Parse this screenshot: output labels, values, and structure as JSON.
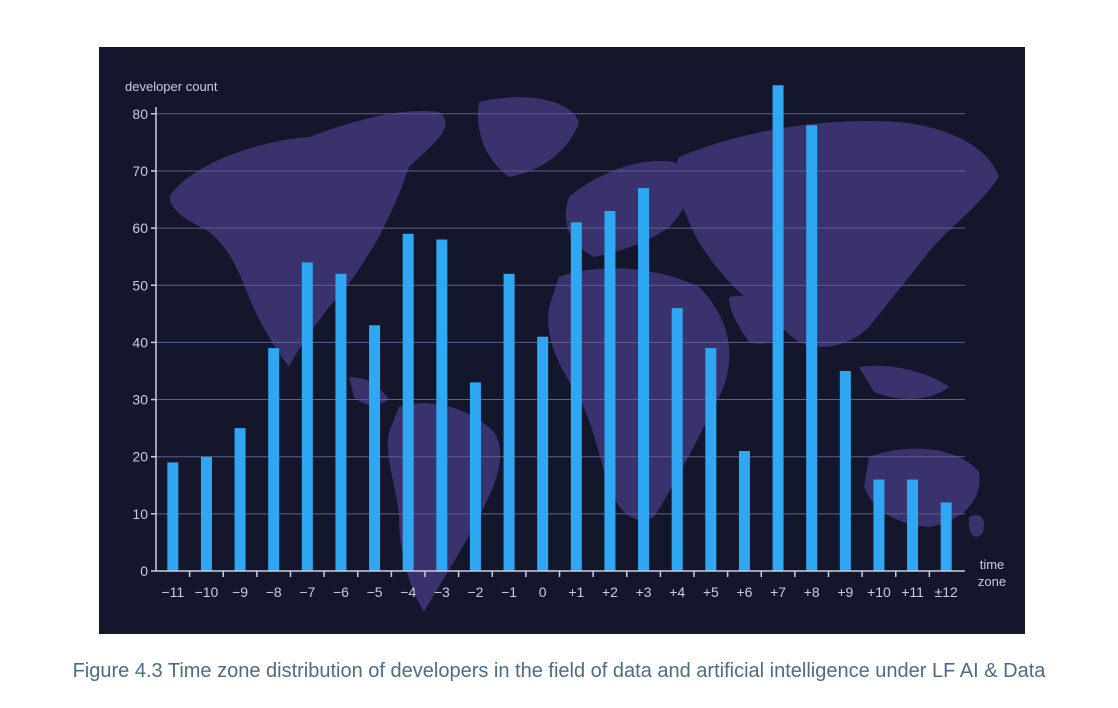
{
  "colors": {
    "background": "#14162b",
    "map": "#3b3470",
    "bar": "#2fa7f2",
    "gridline": "#5a5f8c",
    "axis": "#c9cde0",
    "caption": "#4e6b86"
  },
  "chart_data": {
    "type": "bar",
    "title": "",
    "ylabel": "developer count",
    "xlabel": [
      "time",
      "zone"
    ],
    "categories": [
      "−11",
      "−10",
      "−9",
      "−8",
      "−7",
      "−6",
      "−5",
      "−4",
      "−3",
      "−2",
      "−1",
      "0",
      "+1",
      "+2",
      "+3",
      "+4",
      "+5",
      "+6",
      "+7",
      "+8",
      "+9",
      "+10",
      "+11",
      "±12"
    ],
    "values": [
      19,
      20,
      25,
      39,
      54,
      52,
      43,
      59,
      58,
      33,
      52,
      41,
      61,
      63,
      67,
      46,
      39,
      21,
      85,
      78,
      35,
      16,
      16,
      12
    ],
    "ylim": [
      0,
      85
    ],
    "yticks": [
      0,
      10,
      20,
      30,
      40,
      50,
      60,
      70,
      80
    ],
    "grid": true,
    "background_decoration": "world-map"
  },
  "caption": "Figure 4.3 Time zone distribution of developers in the field of data and artificial intelligence under LF AI & Data"
}
